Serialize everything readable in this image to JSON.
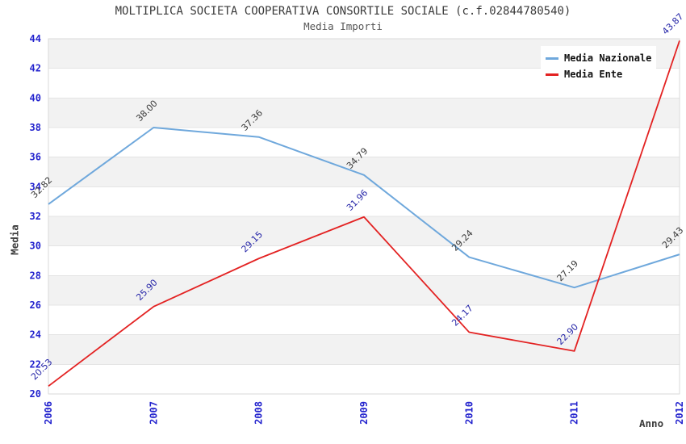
{
  "chart_data": {
    "type": "line",
    "title": "MOLTIPLICA SOCIETA COOPERATIVA CONSORTILE SOCIALE (c.f.02844780540)",
    "subtitle": "Media Importi",
    "xlabel": "Anno",
    "ylabel": "Media",
    "x": [
      "2006",
      "2007",
      "2008",
      "2009",
      "2010",
      "2011",
      "2012"
    ],
    "series": [
      {
        "name": "Media Nazionale",
        "color": "#6FA8DC",
        "label_color": "#3A3A3A",
        "line_width": 2,
        "values": [
          32.82,
          38.0,
          37.36,
          34.79,
          29.24,
          27.19,
          29.43
        ]
      },
      {
        "name": "Media Ente",
        "color": "#E32222",
        "label_color": "#2626A8",
        "line_width": 1.8,
        "values": [
          20.53,
          25.9,
          29.15,
          31.96,
          24.17,
          22.9,
          43.87
        ]
      }
    ],
    "ylim": [
      20,
      44
    ],
    "ytick_step": 2,
    "y_ticks": [
      20,
      22,
      24,
      26,
      28,
      30,
      32,
      34,
      36,
      38,
      40,
      42,
      44
    ],
    "grid": true,
    "banded_background": true,
    "legend_position": "top-right",
    "value_labels": "two_decimals"
  },
  "colors": {
    "tick_label": "#2424CE",
    "band_gray": "#F2F2F2",
    "band_white": "#FFFFFF",
    "gridline": "#E4E4E4",
    "plot_border": "#D9D9D9",
    "background": "#FFFFFF"
  }
}
